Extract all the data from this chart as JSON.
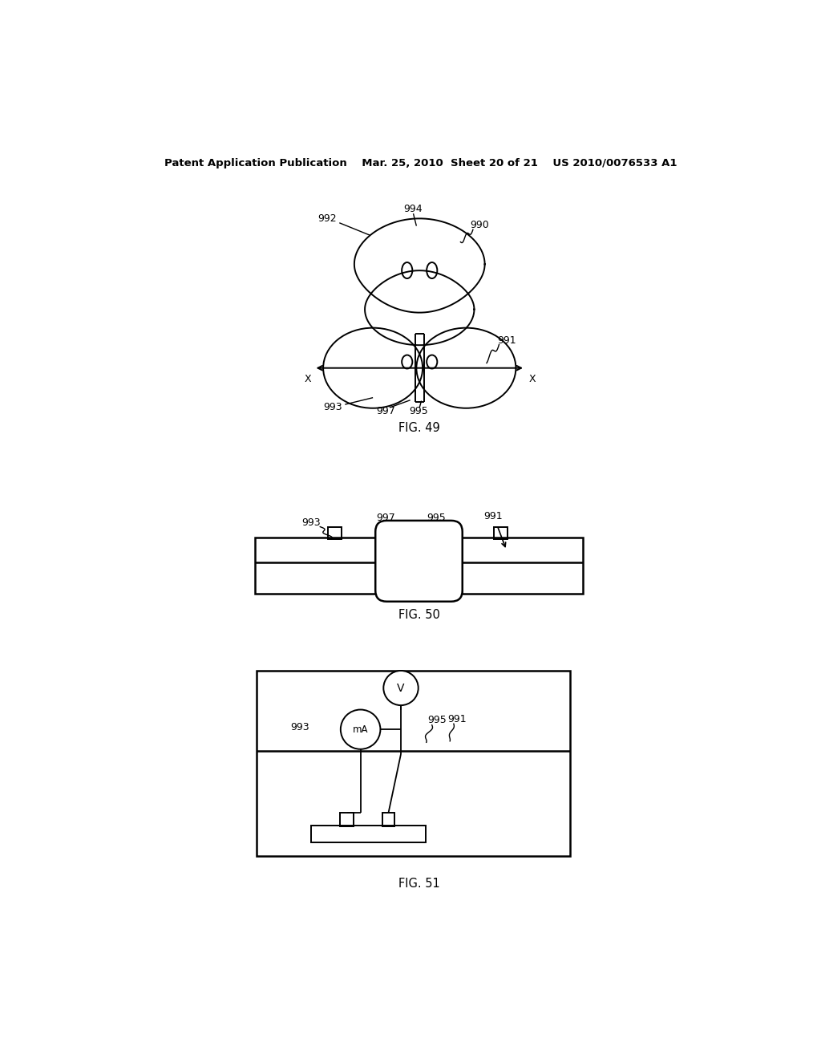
{
  "bg_color": "#ffffff",
  "header": "Patent Application Publication    Mar. 25, 2010  Sheet 20 of 21    US 2010/0076533 A1",
  "fig49_label": "FIG. 49",
  "fig50_label": "FIG. 50",
  "fig51_label": "FIG. 51",
  "lw": 1.4,
  "lw_thick": 1.8
}
